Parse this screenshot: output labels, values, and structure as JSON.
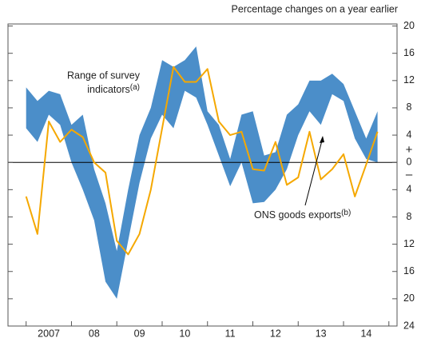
{
  "chart_data": {
    "type": "band_line",
    "subtitle": "Percentage changes on a year earlier",
    "x": [
      2007,
      2007.25,
      2007.5,
      2007.75,
      2008,
      2008.25,
      2008.5,
      2008.75,
      2009,
      2009.25,
      2009.5,
      2009.75,
      2010,
      2010.25,
      2010.5,
      2010.75,
      2011,
      2011.25,
      2011.5,
      2011.75,
      2012,
      2012.25,
      2012.5,
      2012.75,
      2013,
      2013.25,
      2013.5,
      2013.75,
      2014,
      2014.25,
      2014.5,
      2014.75
    ],
    "band": {
      "name": [
        "Range of survey",
        "indicators"
      ],
      "note": "(a)",
      "color": "#4b8ec9",
      "high": [
        11,
        9,
        10.5,
        10,
        5.5,
        7,
        -1,
        -6,
        -13,
        -4,
        4,
        8,
        15,
        14,
        15,
        17,
        7.5,
        5.5,
        0.5,
        7,
        7.5,
        1,
        1.5,
        7,
        8.5,
        12,
        12,
        13,
        11.5,
        7.5,
        3.5,
        7.5
      ],
      "low": [
        5,
        3,
        7,
        5.5,
        0,
        -4,
        -8.5,
        -17.5,
        -20,
        -11.5,
        -3,
        3.5,
        7,
        5,
        10.5,
        9.5,
        5.5,
        1,
        -3.5,
        0,
        -6,
        -5.8,
        -4,
        -1,
        4,
        7.5,
        5.5,
        10,
        9,
        3.5,
        0.5,
        0
      ]
    },
    "series": [
      {
        "name": "ONS goods exports",
        "note": "(b)",
        "color": "#f5a800",
        "values": [
          -5,
          -10.5,
          6,
          3,
          4.8,
          3.7,
          0,
          -1.5,
          -11.5,
          -13.5,
          -10.5,
          -4,
          5,
          14,
          11.8,
          11.8,
          13.7,
          6,
          4,
          4.5,
          -1,
          -1.2,
          3,
          -3.3,
          -2.2,
          4.5,
          -2.5,
          -1,
          1.2,
          -5,
          -0.3,
          4.5
        ]
      }
    ],
    "xlim": [
      2006.6,
      2015.18
    ],
    "xticks": [
      {
        "value": 2007.5,
        "label": "2007"
      },
      {
        "value": 2008.5,
        "label": "08"
      },
      {
        "value": 2009.5,
        "label": "09"
      },
      {
        "value": 2010.5,
        "label": "10"
      },
      {
        "value": 2011.5,
        "label": "11"
      },
      {
        "value": 2012.5,
        "label": "12"
      },
      {
        "value": 2013.5,
        "label": "13"
      },
      {
        "value": 2014.5,
        "label": "14"
      }
    ],
    "x_tick_marks": [
      2007,
      2008,
      2009,
      2010,
      2011,
      2012,
      2013,
      2014,
      2015
    ],
    "ylim": [
      -24,
      20.3
    ],
    "yticks": [
      20,
      16,
      12,
      8,
      4,
      0,
      {
        "value": -4,
        "label": "4"
      },
      {
        "value": -8,
        "label": "8"
      },
      {
        "value": -12,
        "label": "12"
      },
      {
        "value": -16,
        "label": "16"
      },
      {
        "value": -20,
        "label": "20"
      },
      {
        "value": -24,
        "label": "24"
      }
    ],
    "sign_labels": [
      "+",
      "–"
    ]
  }
}
